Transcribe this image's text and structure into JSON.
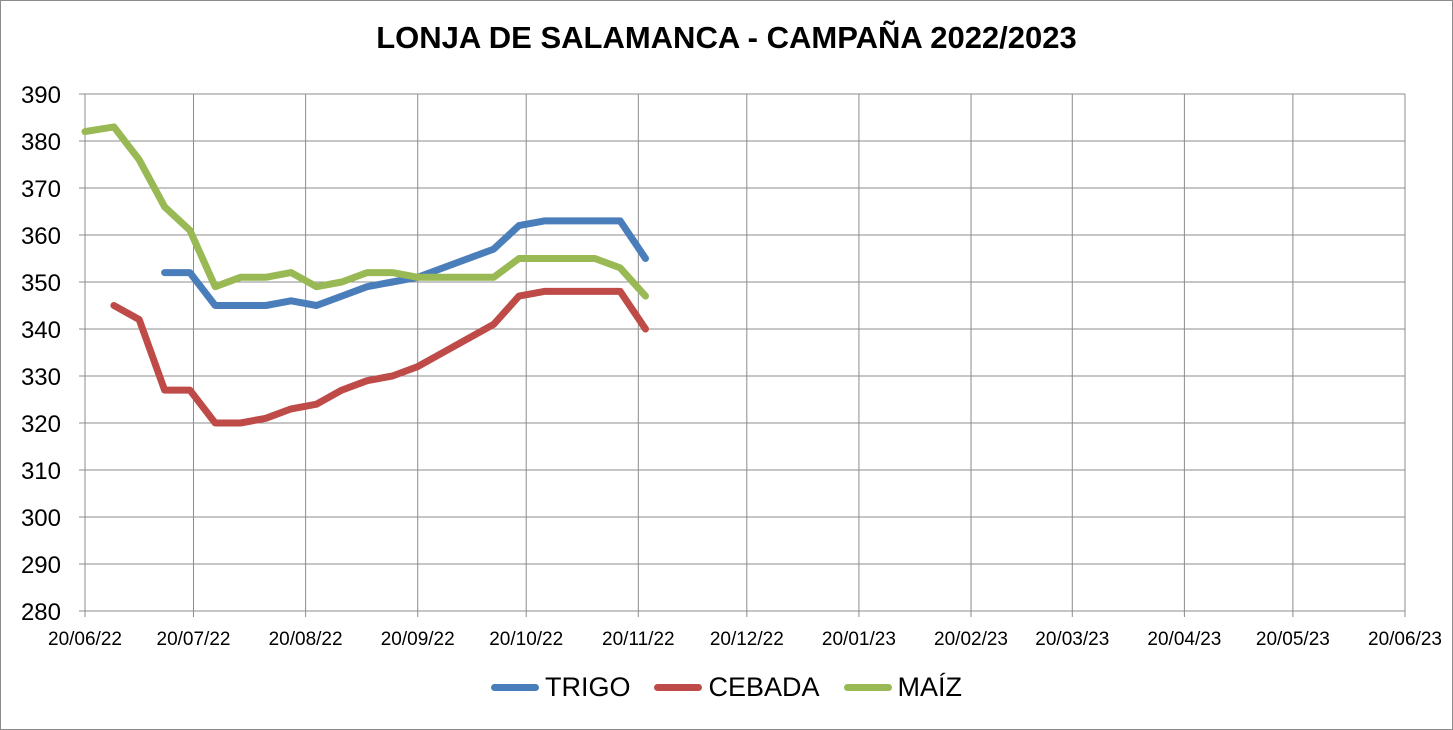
{
  "chart_data": {
    "type": "line",
    "title": "LONJA DE SALAMANCA - CAMPAÑA 2022/2023",
    "xlabel": "",
    "ylabel": "",
    "ylim": [
      280,
      390
    ],
    "y_ticks": [
      280,
      290,
      300,
      310,
      320,
      330,
      340,
      350,
      360,
      370,
      380,
      390
    ],
    "x_range": [
      "2022-06-20",
      "2023-06-20"
    ],
    "x_tick_labels": [
      "20/06/22",
      "20/07/22",
      "20/08/22",
      "20/09/22",
      "20/10/22",
      "20/11/22",
      "20/12/22",
      "20/01/23",
      "20/02/23",
      "20/03/23",
      "20/04/23",
      "20/05/23",
      "20/06/23"
    ],
    "x_ticks": [
      "2022-06-20",
      "2022-07-20",
      "2022-08-20",
      "2022-09-20",
      "2022-10-20",
      "2022-11-20",
      "2022-12-20",
      "2023-01-20",
      "2023-02-20",
      "2023-03-20",
      "2023-04-20",
      "2023-05-20",
      "2023-06-20"
    ],
    "grid": true,
    "legend_position": "bottom",
    "series": [
      {
        "name": "TRIGO",
        "color": "#4a7ebb",
        "x": [
          "2022-07-12",
          "2022-07-19",
          "2022-07-26",
          "2022-08-02",
          "2022-08-09",
          "2022-08-16",
          "2022-08-23",
          "2022-08-30",
          "2022-09-06",
          "2022-09-13",
          "2022-09-20",
          "2022-09-27",
          "2022-10-04",
          "2022-10-11",
          "2022-10-18",
          "2022-10-25",
          "2022-11-01",
          "2022-11-08",
          "2022-11-15",
          "2022-11-22"
        ],
        "values": [
          352,
          352,
          345,
          345,
          345,
          346,
          345,
          347,
          349,
          350,
          351,
          353,
          355,
          357,
          362,
          363,
          363,
          363,
          363,
          355
        ]
      },
      {
        "name": "CEBADA",
        "color": "#be4b48",
        "x": [
          "2022-06-28",
          "2022-07-05",
          "2022-07-12",
          "2022-07-19",
          "2022-07-26",
          "2022-08-02",
          "2022-08-09",
          "2022-08-16",
          "2022-08-23",
          "2022-08-30",
          "2022-09-06",
          "2022-09-13",
          "2022-09-20",
          "2022-09-27",
          "2022-10-04",
          "2022-10-11",
          "2022-10-18",
          "2022-10-25",
          "2022-11-01",
          "2022-11-08",
          "2022-11-15",
          "2022-11-22"
        ],
        "values": [
          345,
          342,
          327,
          327,
          320,
          320,
          321,
          323,
          324,
          327,
          329,
          330,
          332,
          335,
          338,
          341,
          347,
          348,
          348,
          348,
          348,
          340
        ]
      },
      {
        "name": "MAÍZ",
        "color": "#98b954",
        "x": [
          "2022-06-20",
          "2022-06-28",
          "2022-07-05",
          "2022-07-12",
          "2022-07-19",
          "2022-07-26",
          "2022-08-02",
          "2022-08-09",
          "2022-08-16",
          "2022-08-23",
          "2022-08-30",
          "2022-09-06",
          "2022-09-13",
          "2022-09-20",
          "2022-09-27",
          "2022-10-04",
          "2022-10-11",
          "2022-10-18",
          "2022-10-25",
          "2022-11-01",
          "2022-11-08",
          "2022-11-15",
          "2022-11-22"
        ],
        "values": [
          382,
          383,
          376,
          366,
          361,
          349,
          351,
          351,
          352,
          349,
          350,
          352,
          352,
          351,
          351,
          351,
          351,
          355,
          355,
          355,
          355,
          353,
          347
        ]
      }
    ]
  }
}
